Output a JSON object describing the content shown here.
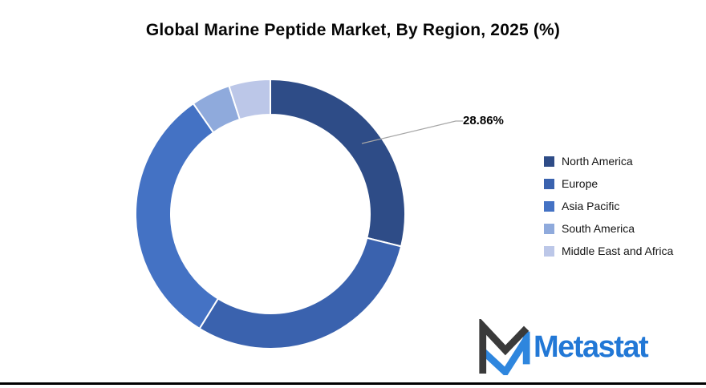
{
  "chart_data": {
    "type": "pie",
    "subtype": "donut",
    "title": "Global Marine Peptide Market, By Region, 2025 (%)",
    "categories": [
      "North America",
      "Europe",
      "Asia Pacific",
      "South America",
      "Middle East and Africa"
    ],
    "values": [
      28.86,
      29.95,
      31.5,
      4.72,
      4.97
    ],
    "unit": "%",
    "colors": [
      "#2E4C87",
      "#3A62AE",
      "#4472C4",
      "#8FAADC",
      "#BCC7E8"
    ],
    "start_angle_deg": 0,
    "direction": "clockwise",
    "hole_ratio": 0.74,
    "slice_gap_color": "#ffffff",
    "legend_position": "right",
    "data_labels": [
      {
        "category": "North America",
        "text": "28.86%"
      }
    ]
  },
  "annotation": {
    "label": "28.86%",
    "leader_color": "#A6A6A6"
  },
  "branding": {
    "logo_text": "Metastat",
    "logo_text_color": "#2278D6",
    "logo_mark_dark": "#3A3A3A",
    "logo_mark_blue": "#2E86DE"
  }
}
